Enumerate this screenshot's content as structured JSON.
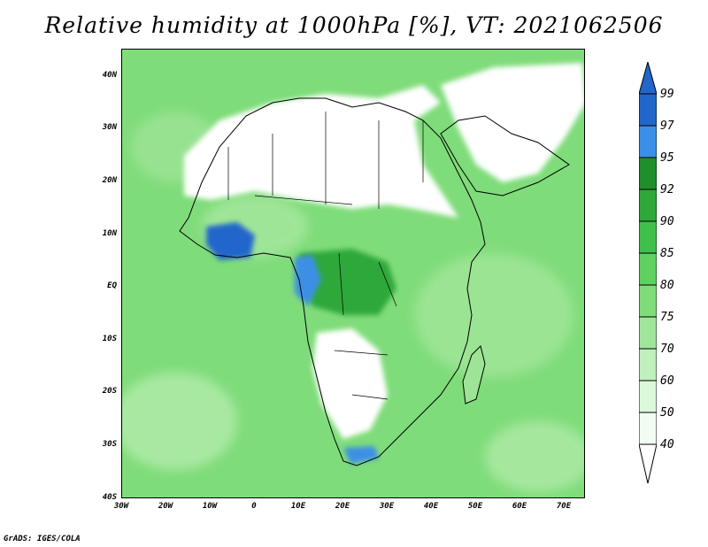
{
  "title": "Relative humidity at 1000hPa [%], VT: 2021062506",
  "credit": "GrADS: IGES/COLA",
  "latitude_labels": [
    "40N",
    "30N",
    "20N",
    "10N",
    "EQ",
    "10S",
    "20S",
    "30S",
    "40S"
  ],
  "longitude_labels": [
    "30W",
    "20W",
    "10W",
    "0",
    "10E",
    "20E",
    "30E",
    "40E",
    "50E",
    "60E",
    "70E"
  ],
  "colorbar": {
    "levels": [
      "99",
      "97",
      "95",
      "92",
      "90",
      "85",
      "80",
      "75",
      "70",
      "60",
      "50",
      "40"
    ],
    "colors": [
      "#2266cc",
      "#3c8fe6",
      "#52aaf0",
      "#1f8f2a",
      "#2fa83a",
      "#3fc04a",
      "#60d060",
      "#80dc78",
      "#a0e69a",
      "#c0f0bc",
      "#dcf8da",
      "#f2fdf2",
      "#ffffff"
    ]
  },
  "map": {
    "background_color": "#7fdc7a",
    "dry_color": "#ffffff",
    "moist_color": "#2fa83a",
    "saturated_color": "#2266cc"
  }
}
